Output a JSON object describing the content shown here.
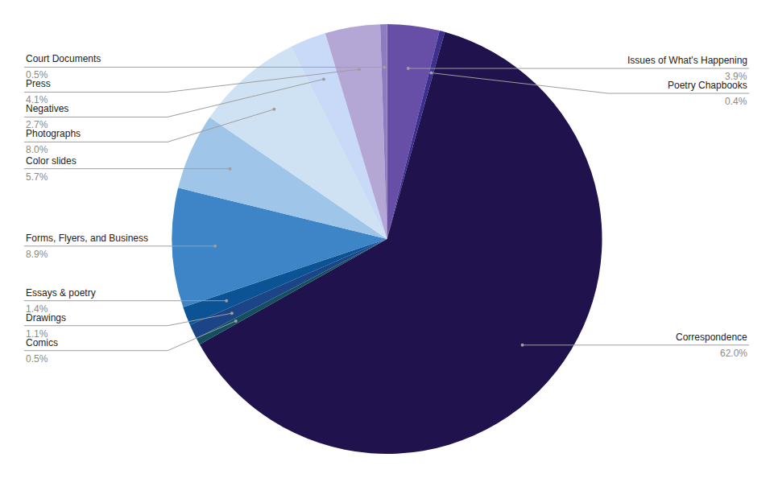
{
  "chart_data": {
    "type": "pie",
    "categories": [
      "Issues of What's Happening",
      "Poetry Chapbooks",
      "Correspondence",
      "Comics",
      "Drawings",
      "Essays & poetry",
      "Forms, Flyers, and Business",
      "Color slides",
      "Photographs",
      "Negatives",
      "Press",
      "Court Documents"
    ],
    "values": [
      3.9,
      0.4,
      62.0,
      0.5,
      1.1,
      1.4,
      8.9,
      5.7,
      8.0,
      2.7,
      4.1,
      0.5
    ],
    "value_labels": [
      "3.9%",
      "0.4%",
      "62.0%",
      "0.5%",
      "1.1%",
      "1.4%",
      "8.9%",
      "5.7%",
      "8.0%",
      "2.7%",
      "4.1%",
      "0.5%"
    ],
    "colors": [
      "#674ea7",
      "#3d2f8f",
      "#20124d",
      "#134f5c",
      "#1c4587",
      "#0b5394",
      "#3d85c6",
      "#9fc5e8",
      "#cfe2f3",
      "#c9daf8",
      "#b4a7d6",
      "#8e7cc3"
    ],
    "data_labels": true
  }
}
